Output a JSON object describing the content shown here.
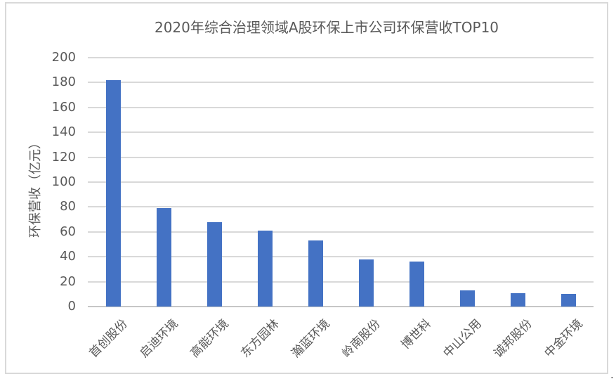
{
  "page": {
    "background": "#ffffff",
    "frame_border_color": "#D9D9D9",
    "corner_mark": "."
  },
  "chart_data": {
    "type": "bar",
    "title": "2020年综合治理领域A股环保上市公司环保营收TOP10",
    "xlabel": "",
    "ylabel": "环保营收（亿元）",
    "categories": [
      "首创股份",
      "启迪环境",
      "高能环境",
      "东方园林",
      "瀚蓝环境",
      "岭南股份",
      "博世科",
      "中山公用",
      "诚邦股份",
      "中金环境"
    ],
    "values": [
      182,
      79,
      68,
      61,
      53,
      38,
      36,
      13,
      11,
      10
    ],
    "ylim": [
      0,
      200
    ],
    "ytick_step": 20,
    "yticks": [
      0,
      20,
      40,
      60,
      80,
      100,
      120,
      140,
      160,
      180,
      200
    ],
    "grid": "horizontal",
    "legend": "none",
    "x_label_rotation_deg": 45,
    "bar_color": "#4472C4",
    "grid_color": "#D9D9D9",
    "axis_line_color": "#C6C6C6",
    "text_color": "#595959"
  }
}
